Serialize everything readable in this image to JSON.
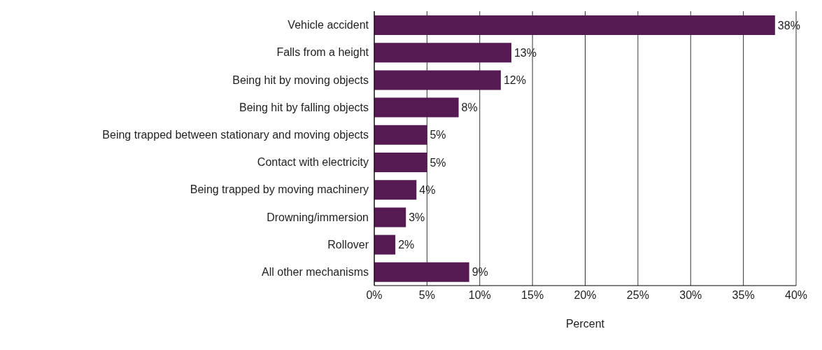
{
  "chart_data": {
    "type": "bar",
    "orientation": "horizontal",
    "xlabel": "Percent",
    "categories": [
      "Vehicle accident",
      "Falls from a height",
      "Being hit by moving objects",
      "Being hit by falling objects",
      "Being trapped between stationary and moving objects",
      "Contact with electricity",
      "Being trapped by moving machinery",
      "Drowning/immersion",
      "Rollover",
      "All other mechanisms"
    ],
    "values": [
      38,
      13,
      12,
      8,
      5,
      5,
      4,
      3,
      2,
      9
    ],
    "value_labels": [
      "38%",
      "13%",
      "12%",
      "8%",
      "5%",
      "5%",
      "4%",
      "3%",
      "2%",
      "9%"
    ],
    "color": "#561a53",
    "xlim": [
      0,
      40
    ],
    "xticks": [
      {
        "value": 0,
        "label": "0%"
      },
      {
        "value": 5,
        "label": "5%"
      },
      {
        "value": 10,
        "label": "10%"
      },
      {
        "value": 15,
        "label": "15%"
      },
      {
        "value": 20,
        "label": "20%"
      },
      {
        "value": 25,
        "label": "25%"
      },
      {
        "value": 30,
        "label": "30%"
      },
      {
        "value": 35,
        "label": "35%"
      },
      {
        "value": 40,
        "label": "40%"
      }
    ],
    "grid": "x"
  }
}
